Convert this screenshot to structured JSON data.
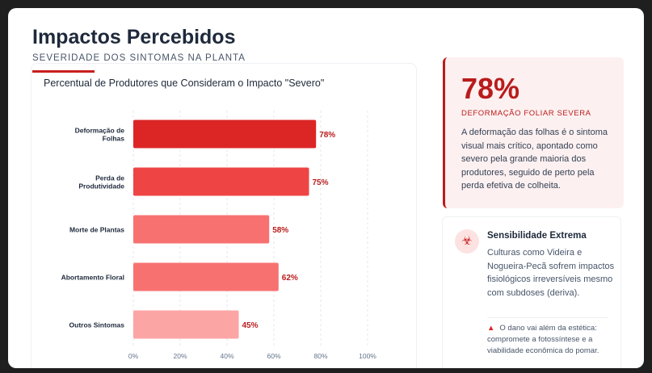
{
  "header": {
    "title": "Impactos Percebidos",
    "subtitle": "SEVERIDADE DOS SINTOMAS NA PLANTA"
  },
  "chart_data": {
    "type": "bar",
    "orientation": "horizontal",
    "title": "Percentual de Produtores que Consideram o Impacto \"Severo\"",
    "categories": [
      [
        "Deformação de",
        "Folhas"
      ],
      [
        "Perda de",
        "Produtividade"
      ],
      [
        "Morte de Plantas"
      ],
      [
        "Abortamento Floral"
      ],
      [
        "Outros Sintomas"
      ]
    ],
    "values": [
      78,
      75,
      58,
      62,
      45
    ],
    "data_labels": [
      "78%",
      "75%",
      "58%",
      "62%",
      "45%"
    ],
    "colors": [
      "#dc2626",
      "#ef4444",
      "#f87171",
      "#f87171",
      "#fca5a5"
    ],
    "xlim": [
      0,
      100
    ],
    "xticks": [
      "0%",
      "20%",
      "40%",
      "60%",
      "80%",
      "100%"
    ],
    "grid": true
  },
  "stat": {
    "value": "78%",
    "label": "DEFORMAÇÃO FOLIAR SEVERA",
    "text": "A deformação das folhas é o sintoma visual mais crítico, apontado como severo pela grande maioria dos produtores, seguido de perto pela perda efetiva de colheita."
  },
  "info": {
    "icon": "biohazard-icon",
    "title": "Sensibilidade Extrema",
    "text": "Culturas como Videira e Nogueira-Pecã sofrem impactos fisiológicos irreversíveis mesmo com subdoses (deriva).",
    "note": "O dano vai além da estética: compromete a fotossíntese e a viabilidade econômica do pomar."
  }
}
